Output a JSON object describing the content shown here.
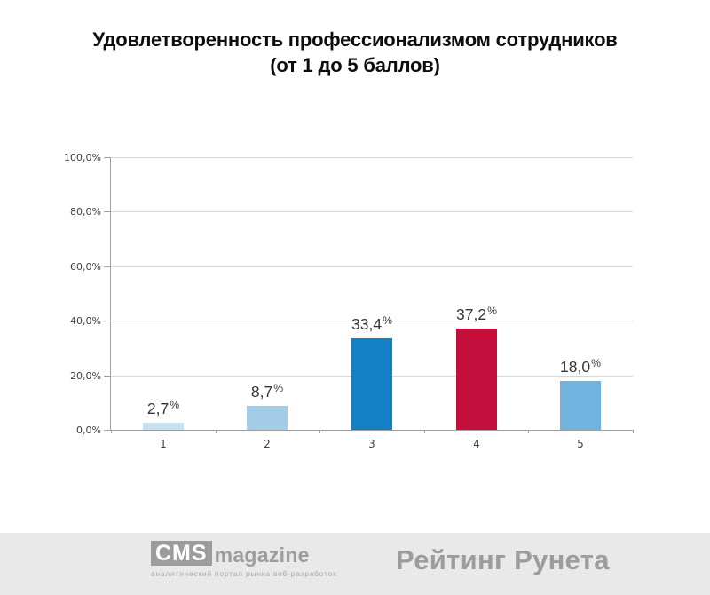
{
  "chart_data": {
    "type": "bar",
    "title": "Удовлетворенность профессионализмом сотрудников",
    "subtitle": "(от 1 до 5 баллов)",
    "categories": [
      "1",
      "2",
      "3",
      "4",
      "5"
    ],
    "values": [
      2.7,
      8.7,
      33.4,
      37.2,
      18.0
    ],
    "value_labels": [
      "2,7%",
      "8,7%",
      "33,4%",
      "37,2%",
      "18,0%"
    ],
    "bar_colors": [
      "#c8e1f0",
      "#a3cce7",
      "#1380c4",
      "#c40e3c",
      "#6fb3de"
    ],
    "y_ticks": [
      "100,0%",
      "80,0%",
      "60,0%",
      "40,0%",
      "20,0%",
      "0,0%"
    ],
    "ylim": [
      0,
      100
    ],
    "xlabel": "",
    "ylabel": "",
    "grid": true,
    "legend": false
  },
  "footer": {
    "cms_logo": {
      "box": "CMS",
      "name": "magazine",
      "tagline": "аналитический портал рынка веб-разработок"
    },
    "rating_runet": "Рейтинг Рунета"
  },
  "colors": {
    "grid": "#d9d9d9",
    "axis": "#9e9e9e",
    "footer_bg": "#e9e9e9",
    "footer_gray": "#9c9c9c"
  }
}
